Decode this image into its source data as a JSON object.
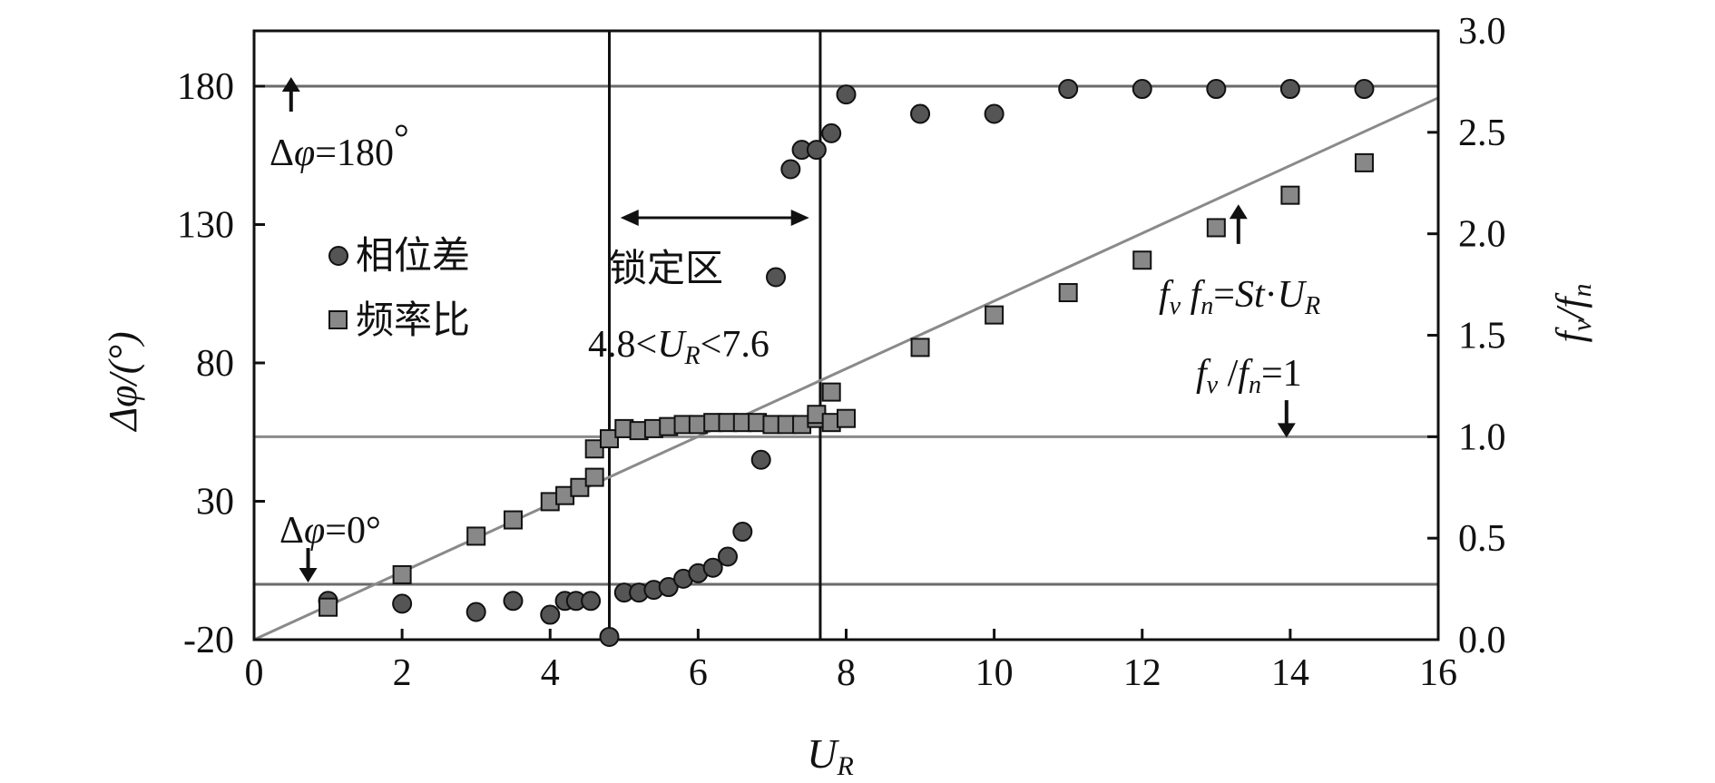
{
  "chart_data": {
    "type": "scatter",
    "xlabel": "U",
    "xlabel_sub": "R",
    "ylabel_left": "Δφ/(°)",
    "ylabel_right": "f",
    "ylabel_right_sub1": "v",
    "ylabel_right_sep": "/f",
    "ylabel_right_sub2": "n",
    "xlim": [
      0,
      16
    ],
    "ylim_left": [
      -20,
      200
    ],
    "ylim_right": [
      0,
      3.0
    ],
    "x_ticks": [
      "0",
      "2",
      "4",
      "6",
      "8",
      "10",
      "12",
      "14",
      "16"
    ],
    "y_left_ticks": [
      "-20",
      "30",
      "80",
      "130",
      "180"
    ],
    "y_right_ticks": [
      "0.0",
      "0.5",
      "1.0",
      "1.5",
      "2.0",
      "2.5",
      "3.0"
    ],
    "grid": false,
    "legend": {
      "placement": "upper-left",
      "entries": [
        {
          "label": "相位差",
          "marker": "circle"
        },
        {
          "label": "频率比",
          "marker": "square"
        }
      ]
    },
    "series": [
      {
        "name": "相位差",
        "axis": "left",
        "marker": "circle",
        "color": "#555555",
        "points": [
          [
            1,
            -6
          ],
          [
            2,
            -7
          ],
          [
            3,
            -10
          ],
          [
            3.5,
            -6
          ],
          [
            4,
            -11
          ],
          [
            4.2,
            -6
          ],
          [
            4.35,
            -6
          ],
          [
            4.55,
            -6
          ],
          [
            4.8,
            -19
          ],
          [
            5,
            -3
          ],
          [
            5.2,
            -3
          ],
          [
            5.4,
            -2
          ],
          [
            5.6,
            -1
          ],
          [
            5.8,
            2
          ],
          [
            6,
            4
          ],
          [
            6.2,
            6
          ],
          [
            6.4,
            10
          ],
          [
            6.6,
            19
          ],
          [
            6.85,
            45
          ],
          [
            7.05,
            111
          ],
          [
            7.25,
            150
          ],
          [
            7.4,
            157
          ],
          [
            7.6,
            157
          ],
          [
            7.8,
            163
          ],
          [
            8,
            177
          ],
          [
            9,
            170
          ],
          [
            10,
            170
          ],
          [
            11,
            179
          ],
          [
            12,
            179
          ],
          [
            13,
            179
          ],
          [
            14,
            179
          ],
          [
            15,
            179
          ]
        ]
      },
      {
        "name": "频率比",
        "axis": "right",
        "marker": "square",
        "color": "#888888",
        "points": [
          [
            1,
            0.16
          ],
          [
            2,
            0.32
          ],
          [
            3,
            0.51
          ],
          [
            3.5,
            0.59
          ],
          [
            4,
            0.68
          ],
          [
            4.2,
            0.71
          ],
          [
            4.4,
            0.75
          ],
          [
            4.6,
            0.8
          ],
          [
            4.6,
            0.94
          ],
          [
            4.8,
            0.99
          ],
          [
            5,
            1.04
          ],
          [
            5.2,
            1.03
          ],
          [
            5.4,
            1.04
          ],
          [
            5.6,
            1.05
          ],
          [
            5.8,
            1.06
          ],
          [
            6,
            1.06
          ],
          [
            6.2,
            1.07
          ],
          [
            6.4,
            1.07
          ],
          [
            6.6,
            1.07
          ],
          [
            6.8,
            1.07
          ],
          [
            7,
            1.06
          ],
          [
            7.2,
            1.06
          ],
          [
            7.4,
            1.06
          ],
          [
            7.6,
            1.09
          ],
          [
            7.6,
            1.11
          ],
          [
            7.8,
            1.07
          ],
          [
            7.8,
            1.22
          ],
          [
            8,
            1.09
          ],
          [
            9,
            1.44
          ],
          [
            10,
            1.6
          ],
          [
            11,
            1.71
          ],
          [
            12,
            1.87
          ],
          [
            13,
            2.03
          ],
          [
            14,
            2.19
          ],
          [
            15,
            2.35
          ]
        ]
      }
    ],
    "reference_lines": [
      {
        "type": "horizontal",
        "axis": "left",
        "y": 180
      },
      {
        "type": "horizontal",
        "axis": "left",
        "y": 0
      },
      {
        "type": "horizontal",
        "axis": "right",
        "y": 1.0
      },
      {
        "type": "vertical",
        "x": 4.8
      },
      {
        "type": "vertical",
        "x": 7.65
      },
      {
        "type": "line",
        "axis": "right",
        "x1": 0,
        "y1": 0,
        "x2": 16,
        "y2": 2.67
      }
    ],
    "annotations": {
      "dphi180_a": "Δ",
      "dphi180_b": "φ",
      "dphi180_c": "=180",
      "dphi180_d": "°",
      "dphi0_a": "Δ",
      "dphi0_b": "φ",
      "dphi0_c": "=0°",
      "lock_label": "锁定区",
      "range_a": "4.8<",
      "range_b": "U",
      "range_c": "R",
      "range_d": "<7.6",
      "st_f1": "f",
      "st_v": "v",
      "st_sp": " ",
      "st_f2": "f",
      "st_n": "n",
      "st_eq": "=",
      "st_st": "St",
      "st_dot": "·",
      "st_u": "U",
      "st_r": "R",
      "ratio_f1": "f",
      "ratio_v": "v",
      "ratio_slash": " /",
      "ratio_f2": "f",
      "ratio_n": "n",
      "ratio_eq": "=1"
    }
  }
}
